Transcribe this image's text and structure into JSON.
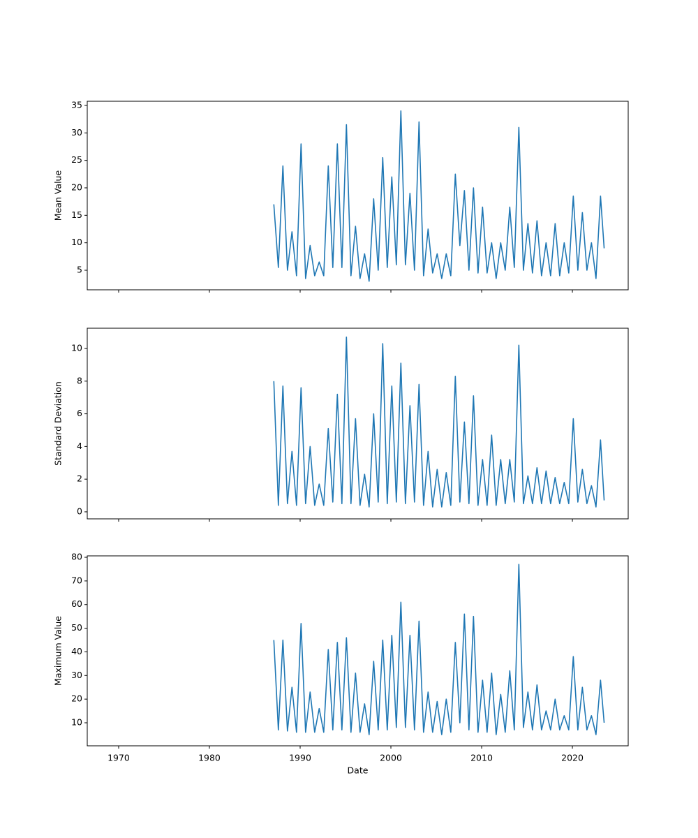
{
  "chart_data": [
    {
      "type": "line",
      "ylabel": "Mean Value",
      "sharex": true,
      "x": [
        1987.1,
        1987.6,
        1988.1,
        1988.6,
        1989.1,
        1989.6,
        1990.1,
        1990.6,
        1991.1,
        1991.6,
        1992.1,
        1992.6,
        1993.1,
        1993.6,
        1994.1,
        1994.6,
        1995.1,
        1995.6,
        1996.1,
        1996.6,
        1997.1,
        1997.6,
        1998.1,
        1998.6,
        1999.1,
        1999.6,
        2000.1,
        2000.6,
        2001.1,
        2001.6,
        2002.1,
        2002.6,
        2003.1,
        2003.6,
        2004.1,
        2004.6,
        2005.1,
        2005.6,
        2006.1,
        2006.6,
        2007.1,
        2007.6,
        2008.1,
        2008.6,
        2009.1,
        2009.6,
        2010.1,
        2010.6,
        2011.1,
        2011.6,
        2012.1,
        2012.6,
        2013.1,
        2013.6,
        2014.1,
        2014.6,
        2015.1,
        2015.6,
        2016.1,
        2016.6,
        2017.1,
        2017.6,
        2018.1,
        2018.6,
        2019.1,
        2019.6,
        2020.1,
        2020.6,
        2021.1,
        2021.6,
        2022.1,
        2022.6,
        2023.1,
        2023.5
      ],
      "series": [
        {
          "color": "#1f77b4",
          "values": [
            17,
            5.5,
            24,
            5,
            12,
            4,
            28,
            3.5,
            9.5,
            4,
            6.5,
            4,
            24,
            5.5,
            28,
            5.5,
            31.5,
            4,
            13,
            3.5,
            8,
            3,
            18,
            5,
            25.5,
            5.5,
            22,
            6,
            34,
            6,
            19,
            5,
            32,
            4,
            12.5,
            4.5,
            8,
            3.5,
            8,
            4,
            22.5,
            9.5,
            19.5,
            5,
            20,
            4.5,
            16.5,
            4.5,
            10,
            3.5,
            10,
            5,
            16.5,
            5.5,
            31,
            5,
            13.5,
            4.5,
            14,
            4,
            10,
            4,
            13.5,
            4,
            10,
            4.5,
            18.5,
            5,
            15.5,
            5,
            10,
            3.5,
            18.5,
            9
          ]
        }
      ],
      "ylim": [
        1.44,
        35.76
      ],
      "yticks": [
        5,
        10,
        15,
        20,
        25,
        30,
        35
      ]
    },
    {
      "type": "line",
      "ylabel": "Standard Deviation",
      "sharex": true,
      "x": [
        1987.1,
        1987.6,
        1988.1,
        1988.6,
        1989.1,
        1989.6,
        1990.1,
        1990.6,
        1991.1,
        1991.6,
        1992.1,
        1992.6,
        1993.1,
        1993.6,
        1994.1,
        1994.6,
        1995.1,
        1995.6,
        1996.1,
        1996.6,
        1997.1,
        1997.6,
        1998.1,
        1998.6,
        1999.1,
        1999.6,
        2000.1,
        2000.6,
        2001.1,
        2001.6,
        2002.1,
        2002.6,
        2003.1,
        2003.6,
        2004.1,
        2004.6,
        2005.1,
        2005.6,
        2006.1,
        2006.6,
        2007.1,
        2007.6,
        2008.1,
        2008.6,
        2009.1,
        2009.6,
        2010.1,
        2010.6,
        2011.1,
        2011.6,
        2012.1,
        2012.6,
        2013.1,
        2013.6,
        2014.1,
        2014.6,
        2015.1,
        2015.6,
        2016.1,
        2016.6,
        2017.1,
        2017.6,
        2018.1,
        2018.6,
        2019.1,
        2019.6,
        2020.1,
        2020.6,
        2021.1,
        2021.6,
        2022.1,
        2022.6,
        2023.1,
        2023.5
      ],
      "series": [
        {
          "color": "#1f77b4",
          "values": [
            8,
            0.4,
            7.7,
            0.5,
            3.7,
            0.4,
            7.6,
            0.5,
            4,
            0.4,
            1.7,
            0.4,
            5.1,
            0.6,
            7.2,
            0.5,
            10.7,
            0.5,
            5.7,
            0.4,
            2.3,
            0.3,
            6,
            0.6,
            10.3,
            0.5,
            7.7,
            0.6,
            9.1,
            0.5,
            6.5,
            0.6,
            7.8,
            0.4,
            3.7,
            0.3,
            2.6,
            0.3,
            2.4,
            0.4,
            8.3,
            0.6,
            5.5,
            0.5,
            7.1,
            0.4,
            3.2,
            0.4,
            4.7,
            0.4,
            3.2,
            0.5,
            3.2,
            0.6,
            10.2,
            0.5,
            2.2,
            0.5,
            2.7,
            0.5,
            2.5,
            0.5,
            2.1,
            0.5,
            1.8,
            0.5,
            5.7,
            0.6,
            2.6,
            0.5,
            1.6,
            0.3,
            4.4,
            0.7
          ]
        }
      ],
      "ylim": [
        -0.43,
        11.24
      ],
      "yticks": [
        0,
        2,
        4,
        6,
        8,
        10
      ]
    },
    {
      "type": "line",
      "ylabel": "Maximum Value",
      "xlabel": "Date",
      "x": [
        1987.1,
        1987.6,
        1988.1,
        1988.6,
        1989.1,
        1989.6,
        1990.1,
        1990.6,
        1991.1,
        1991.6,
        1992.1,
        1992.6,
        1993.1,
        1993.6,
        1994.1,
        1994.6,
        1995.1,
        1995.6,
        1996.1,
        1996.6,
        1997.1,
        1997.6,
        1998.1,
        1998.6,
        1999.1,
        1999.6,
        2000.1,
        2000.6,
        2001.1,
        2001.6,
        2002.1,
        2002.6,
        2003.1,
        2003.6,
        2004.1,
        2004.6,
        2005.1,
        2005.6,
        2006.1,
        2006.6,
        2007.1,
        2007.6,
        2008.1,
        2008.6,
        2009.1,
        2009.6,
        2010.1,
        2010.6,
        2011.1,
        2011.6,
        2012.1,
        2012.6,
        2013.1,
        2013.6,
        2014.1,
        2014.6,
        2015.1,
        2015.6,
        2016.1,
        2016.6,
        2017.1,
        2017.6,
        2018.1,
        2018.6,
        2019.1,
        2019.6,
        2020.1,
        2020.6,
        2021.1,
        2021.6,
        2022.1,
        2022.6,
        2023.1,
        2023.5
      ],
      "series": [
        {
          "color": "#1f77b4",
          "values": [
            45,
            7,
            45,
            6.5,
            25,
            6,
            52,
            6,
            23,
            6,
            16,
            6,
            41,
            7,
            44,
            7,
            46,
            6,
            31,
            6,
            18,
            5,
            36,
            7,
            45,
            7,
            47,
            8,
            61,
            8,
            47,
            7,
            53,
            6,
            23,
            6,
            19,
            5,
            20,
            6,
            44,
            10,
            56,
            7,
            55,
            6,
            28,
            6,
            31,
            5,
            22,
            6,
            32,
            7,
            77,
            8,
            23,
            7,
            26,
            7,
            15,
            7,
            20,
            7,
            13,
            7,
            38,
            7,
            25,
            7,
            13,
            5,
            28,
            10
          ]
        }
      ],
      "xlim": [
        1966.54,
        2026.15
      ],
      "xticks": [
        1970,
        1980,
        1990,
        2000,
        2010,
        2020
      ],
      "ylim": [
        0.25,
        80.6
      ],
      "yticks": [
        10,
        20,
        30,
        40,
        50,
        60,
        70,
        80
      ]
    }
  ]
}
